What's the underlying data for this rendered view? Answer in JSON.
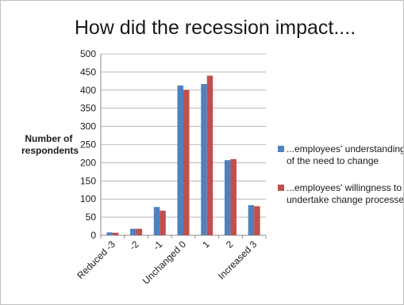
{
  "chart_data": {
    "type": "bar",
    "title": "How did the recession impact....",
    "xlabel": "",
    "ylabel_lines": [
      "Number of",
      "respondents"
    ],
    "categories": [
      "Reduced -3",
      "-2",
      "-1",
      "Unchanged 0",
      "1",
      "2",
      "Increased 3"
    ],
    "ylim": [
      0,
      500
    ],
    "yticks": [
      0,
      50,
      100,
      150,
      200,
      250,
      300,
      350,
      400,
      450,
      500
    ],
    "grid": true,
    "legend_position": "right",
    "series": [
      {
        "name_lines": [
          "...employees' understanding",
          "of the need to change"
        ],
        "color": "#4f81bd",
        "values": [
          8,
          18,
          78,
          413,
          417,
          207,
          83
        ]
      },
      {
        "name_lines": [
          "...employees' willingness to",
          "undertake change processes"
        ],
        "color": "#c0504d",
        "values": [
          7,
          18,
          68,
          401,
          440,
          210,
          80
        ]
      }
    ]
  }
}
